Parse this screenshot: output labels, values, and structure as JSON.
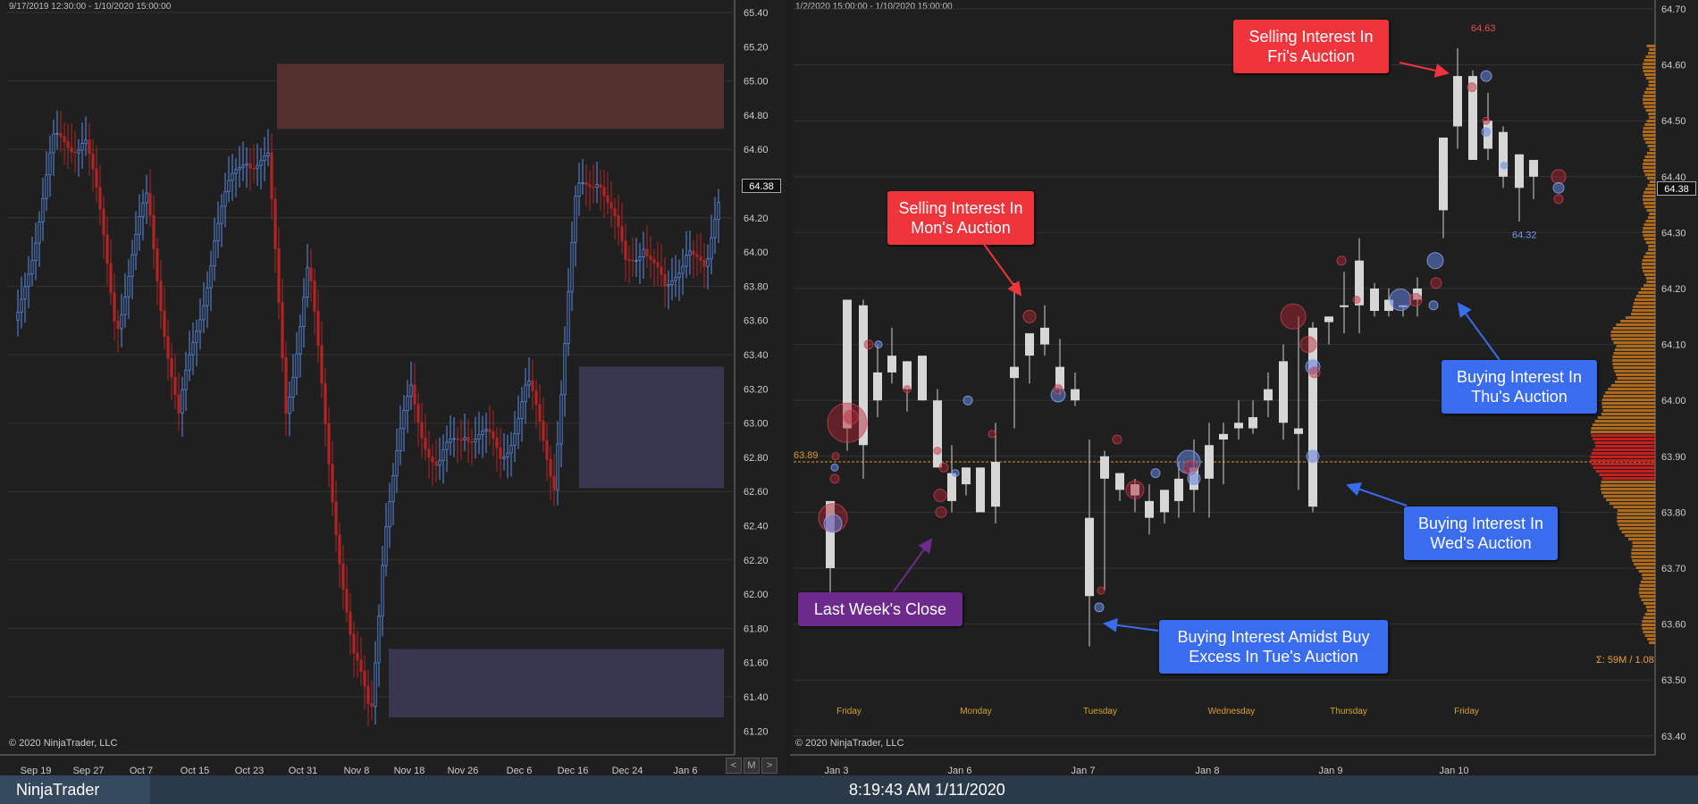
{
  "app": {
    "title": "NinjaTrader",
    "clock": "8:19:43 AM 1/11/2020"
  },
  "left_chart": {
    "range": "9/17/2019 12:30:00 - 1/10/2020 15:00:00",
    "copyright": "© 2020 NinjaTrader, LLC",
    "x_labels": [
      "Sep 19",
      "Sep 27",
      "Oct 7",
      "Oct 15",
      "Oct 23",
      "Oct 31",
      "Nov 8",
      "Nov 18",
      "Nov 26",
      "Dec 6",
      "Dec 16",
      "Dec 24",
      "Jan 6"
    ],
    "y_labels": [
      "65.40",
      "65.20",
      "65.00",
      "64.80",
      "64.60",
      "64.40",
      "64.20",
      "64.00",
      "63.80",
      "63.60",
      "63.40",
      "63.20",
      "63.00",
      "62.80",
      "62.60",
      "62.40",
      "62.20",
      "62.00",
      "61.80",
      "61.60",
      "61.40",
      "61.20"
    ],
    "last_price": "64.38",
    "zones": [
      {
        "name": "selling-zone",
        "from": 64.72,
        "to": 65.1,
        "color": "#5a3230"
      },
      {
        "name": "buying-zone-upper",
        "from": 62.62,
        "to": 63.33,
        "color": "#3a3a55"
      },
      {
        "name": "buying-zone-lower",
        "from": 61.28,
        "to": 61.68,
        "color": "#3a3a55"
      }
    ],
    "nav": {
      "prev": "<",
      "mode": "M",
      "next": ">"
    }
  },
  "right_chart": {
    "range": "1/2/2020 15:00:00 - 1/10/2020 15:00:00",
    "copyright": "© 2020 NinjaTrader, LLC",
    "x_labels": [
      "Jan 3",
      "Jan 6",
      "Jan 7",
      "Jan 8",
      "Jan 9",
      "Jan 10"
    ],
    "session_labels": [
      "Friday",
      "Monday",
      "Tuesday",
      "Wednesday",
      "Thursday",
      "Friday"
    ],
    "y_labels": [
      "64.70",
      "64.60",
      "64.50",
      "64.40",
      "64.30",
      "64.20",
      "64.10",
      "64.00",
      "63.90",
      "63.80",
      "63.70",
      "63.60",
      "63.50",
      "63.40"
    ],
    "last_price": "64.38",
    "close_line_label": "63.89",
    "high_label": "64.63",
    "low_label": "64.32",
    "volume_summary": "Σ: 59M / 1.08"
  },
  "annotations": {
    "fri_selling": "Selling Interest In Fri's Auction",
    "mon_selling": "Selling Interest In Mon's Auction",
    "thu_buying": "Buying Interest In Thu's Auction",
    "wed_buying": "Buying Interest In Wed's Auction",
    "tue_buying": "Buying Interest Amidst Buy Excess In Tue's Auction",
    "last_week_close": "Last Week's Close"
  },
  "colors": {
    "up_candle": "#5b8de8",
    "down_candle": "#b02424",
    "right_candle": "#d6d6d6",
    "accent_red": "#f0343c",
    "accent_blue": "#3a6cf0",
    "accent_purple": "#6c2a8c",
    "close_line": "#d89a2a"
  }
}
